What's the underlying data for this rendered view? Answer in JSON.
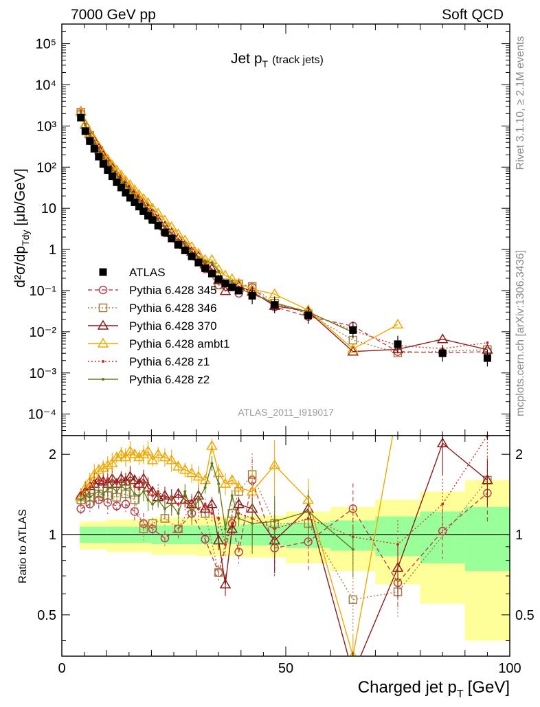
{
  "header": {
    "left": "7000 GeV pp",
    "right": "Soft QCD"
  },
  "side_labels": {
    "rivet": "Rivet 3.1.10, ≥ 2.1M events",
    "mcplots": "mcplots.cern.ch [arXiv:1306.3436]"
  },
  "main": {
    "title": "Jet p",
    "title_sub": "T",
    "title_suffix": "(track jets)",
    "ylabel": "d²σ/dp",
    "ylabel_sub": "Tdy",
    "ylabel_suffix": "[μb/GeV]",
    "analysis_tag": "ATLAS_2011_I919017"
  },
  "ratio": {
    "ylabel": "Ratio to ATLAS"
  },
  "xlabel": "Charged jet p",
  "xlabel_sub": "T",
  "xlabel_suffix": "[GeV]",
  "legend": [
    {
      "label": "ATLAS",
      "color": "#000000",
      "marker": "square-filled"
    },
    {
      "label": "Pythia 6.428 345",
      "color": "#b8404f",
      "marker": "circle-open",
      "dash": "dashed"
    },
    {
      "label": "Pythia 6.428 346",
      "color": "#a87c40",
      "marker": "square-open",
      "dash": "dotted"
    },
    {
      "label": "Pythia 6.428 370",
      "color": "#8b1a1a",
      "marker": "triangle-open",
      "dash": "solid"
    },
    {
      "label": "Pythia 6.428 ambt1",
      "color": "#f0a800",
      "marker": "triangle-open",
      "dash": "solid"
    },
    {
      "label": "Pythia 6.428 z1",
      "color": "#d42a20",
      "marker": "dot",
      "dash": "dotted"
    },
    {
      "label": "Pythia 6.428 z2",
      "color": "#6b7a1a",
      "marker": "dot",
      "dash": "solid"
    }
  ],
  "chart_data": [
    {
      "type": "scatter",
      "panel": "main",
      "title": "Jet pT (track jets)",
      "xlabel": "Charged jet pT [GeV]",
      "ylabel": "d²σ/dpTdy [μb/GeV]",
      "xlim": [
        0,
        100
      ],
      "ylim": [
        3e-05,
        300000
      ],
      "y_scale": "log",
      "x_ticks": [
        "0",
        "50",
        "100"
      ],
      "y_ticks": [
        "10⁻⁴",
        "10⁻³",
        "10⁻²",
        "10⁻¹",
        "1",
        "10",
        "10²",
        "10³",
        "10⁴",
        "10⁵"
      ],
      "x": [
        4.25,
        5.25,
        6.25,
        7.25,
        8.25,
        9.25,
        10.25,
        11.25,
        12.25,
        13.25,
        14.25,
        15.25,
        16.25,
        17.25,
        18.25,
        19.25,
        20.25,
        21.5,
        23.0,
        24.5,
        26.0,
        27.5,
        29.0,
        30.5,
        32.0,
        33.5,
        35.0,
        36.5,
        38.0,
        39.5,
        42.5,
        47.5,
        55.0,
        65.0,
        75.0,
        85.0,
        95.0
      ],
      "atlas": [
        1600,
        750,
        430,
        280,
        180,
        120,
        85,
        60,
        43,
        32,
        24,
        18,
        14,
        11,
        8.5,
        6.6,
        5.2,
        3.8,
        2.6,
        1.85,
        1.3,
        0.95,
        0.68,
        0.48,
        0.35,
        0.26,
        0.19,
        0.15,
        0.12,
        0.1,
        0.075,
        0.045,
        0.025,
        0.011,
        0.005,
        0.003,
        0.0023
      ],
      "legend_position": "middle-left"
    },
    {
      "type": "line",
      "panel": "ratio",
      "ylabel": "Ratio to ATLAS",
      "xlim": [
        0,
        100
      ],
      "ylim": [
        0.35,
        2.35
      ],
      "y_ticks": [
        "0.5",
        "1",
        "2"
      ],
      "bands": {
        "x_edges": [
          4,
          10,
          20,
          30,
          40,
          50,
          60,
          70,
          80,
          90,
          100
        ],
        "green": [
          0.07,
          0.07,
          0.08,
          0.08,
          0.09,
          0.11,
          0.13,
          0.17,
          0.22,
          0.27
        ],
        "yellow": [
          0.12,
          0.14,
          0.16,
          0.17,
          0.18,
          0.22,
          0.27,
          0.35,
          0.45,
          0.6
        ]
      },
      "series": [
        {
          "name": "Pythia 6.428 345",
          "x": [
            4.25,
            6.25,
            8.25,
            10.25,
            12.25,
            14.25,
            16.25,
            18.25,
            20.25,
            23.0,
            26.0,
            29.0,
            32.0,
            35.0,
            38.0,
            39.5,
            42.5,
            47.5,
            55.0,
            65.0,
            75.0,
            85.0,
            95.0
          ],
          "values": [
            1.25,
            1.3,
            1.35,
            1.32,
            1.28,
            1.3,
            1.22,
            1.1,
            1.05,
            0.97,
            1.05,
            1.2,
            0.96,
            0.72,
            1.1,
            0.86,
            1.6,
            0.89,
            0.94,
            1.25,
            0.66,
            1.03,
            1.43
          ]
        },
        {
          "name": "Pythia 6.428 346",
          "x": [
            4.25,
            6.25,
            8.25,
            10.25,
            12.25,
            14.25,
            16.25,
            18.25,
            20.25,
            23.0,
            26.0,
            29.0,
            32.0,
            35.0,
            38.0,
            39.5,
            42.5,
            47.5,
            55.0,
            65.0,
            75.0,
            95.0
          ],
          "values": [
            1.35,
            1.38,
            1.42,
            1.4,
            1.38,
            1.42,
            1.35,
            1.05,
            1.1,
            1.15,
            1.05,
            1.3,
            1.2,
            0.72,
            1.2,
            1.45,
            1.68,
            1.1,
            1.1,
            0.57,
            0.61,
            1.6
          ]
        },
        {
          "name": "Pythia 6.428 370",
          "x": [
            4.25,
            5.25,
            6.25,
            7.25,
            8.25,
            9.25,
            10.25,
            11.25,
            12.25,
            13.25,
            14.25,
            15.25,
            16.25,
            17.25,
            18.25,
            19.25,
            20.25,
            21.5,
            23.0,
            24.5,
            26.0,
            27.5,
            29.0,
            30.5,
            32.0,
            33.5,
            35.0,
            36.5,
            38.0,
            39.5,
            42.5,
            47.5,
            55.0,
            65.0,
            75.0,
            85.0,
            95.0
          ],
          "values": [
            1.4,
            1.45,
            1.52,
            1.55,
            1.6,
            1.58,
            1.55,
            1.62,
            1.55,
            1.62,
            1.58,
            1.65,
            1.6,
            1.55,
            1.62,
            1.5,
            1.45,
            1.38,
            1.4,
            1.35,
            1.42,
            1.35,
            1.3,
            1.4,
            1.25,
            1.3,
            0.95,
            0.65,
            1.05,
            1.3,
            1.25,
            0.95,
            1.25,
            0.3,
            0.75,
            2.2,
            1.6
          ]
        },
        {
          "name": "Pythia 6.428 ambt1",
          "x": [
            4.25,
            5.25,
            6.25,
            7.25,
            8.25,
            9.25,
            10.25,
            11.25,
            12.25,
            13.25,
            14.25,
            15.25,
            16.25,
            17.25,
            18.25,
            19.25,
            20.25,
            21.5,
            23.0,
            24.5,
            26.0,
            27.5,
            29.0,
            30.5,
            32.0,
            33.5,
            35.0,
            36.5,
            38.0,
            39.5,
            42.5,
            47.5,
            55.0,
            65.0,
            75.0
          ],
          "values": [
            1.38,
            1.5,
            1.58,
            1.68,
            1.75,
            1.78,
            1.82,
            1.85,
            1.95,
            2.0,
            1.95,
            2.05,
            2.0,
            1.95,
            2.0,
            2.05,
            1.9,
            2.0,
            1.95,
            1.9,
            1.8,
            1.75,
            1.7,
            1.65,
            1.6,
            2.15,
            1.7,
            1.55,
            1.6,
            1.5,
            1.45,
            1.82,
            1.35,
            0.35,
            3.0
          ]
        },
        {
          "name": "Pythia 6.428 z1",
          "x": [
            4.25,
            5.25,
            6.25,
            7.25,
            8.25,
            9.25,
            10.25,
            11.25,
            12.25,
            13.25,
            14.25,
            15.25,
            16.25,
            17.25,
            18.25,
            19.25,
            20.25,
            21.5,
            23.0,
            24.5,
            26.0,
            27.5,
            29.0,
            30.5,
            32.0,
            33.5,
            35.0,
            36.5,
            38.0,
            39.5,
            42.5,
            47.5,
            55.0,
            65.0,
            75.0,
            85.0,
            95.0
          ],
          "values": [
            1.42,
            1.48,
            1.5,
            1.55,
            1.6,
            1.58,
            1.62,
            1.58,
            1.55,
            1.6,
            1.55,
            1.58,
            1.52,
            1.48,
            1.55,
            1.45,
            1.4,
            1.45,
            1.38,
            1.35,
            1.3,
            1.32,
            1.28,
            1.25,
            1.3,
            1.2,
            1.15,
            0.92,
            1.1,
            1.2,
            1.15,
            1.05,
            1.15,
            0.98,
            0.92,
            1.3,
            2.35
          ]
        },
        {
          "name": "Pythia 6.428 z2",
          "x": [
            4.25,
            5.25,
            6.25,
            7.25,
            8.25,
            9.25,
            10.25,
            11.25,
            12.25,
            13.25,
            14.25,
            15.25,
            16.25,
            17.25,
            18.25,
            19.25,
            20.25,
            21.5,
            23.0,
            24.5,
            26.0,
            27.5,
            29.0,
            30.5,
            32.0,
            33.5,
            35.0,
            36.5,
            38.0,
            39.5,
            42.5,
            47.5,
            55.0,
            65.0
          ],
          "values": [
            1.35,
            1.4,
            1.38,
            1.42,
            1.45,
            1.42,
            1.48,
            1.5,
            1.45,
            1.52,
            1.48,
            1.5,
            1.42,
            1.4,
            1.45,
            1.35,
            1.3,
            1.35,
            1.25,
            1.3,
            1.2,
            1.45,
            1.2,
            1.35,
            1.5,
            1.85,
            1.55,
            1.05,
            1.4,
            1.15,
            1.1,
            1.12,
            1.22,
            0.88
          ]
        }
      ]
    }
  ]
}
